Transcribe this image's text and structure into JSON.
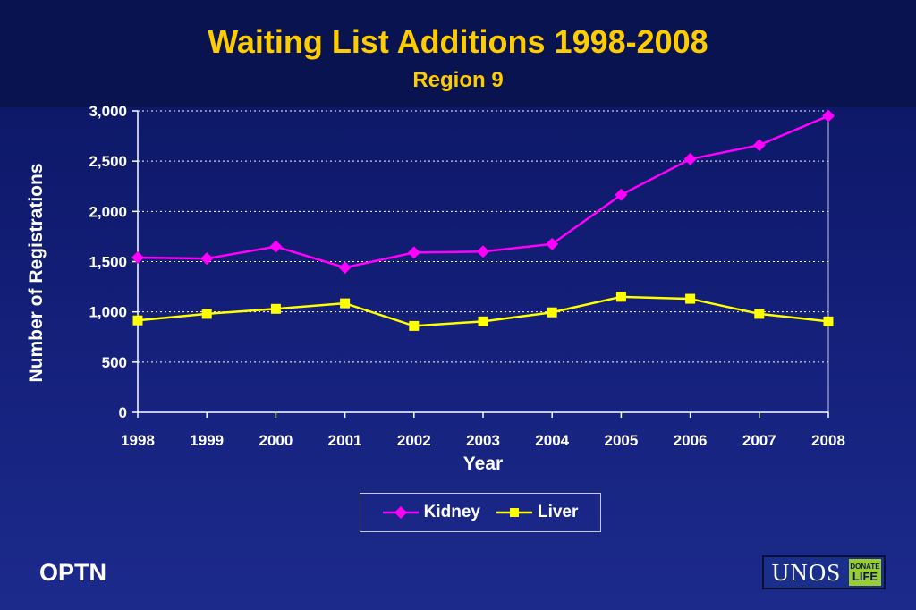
{
  "title": "Waiting List Additions 1998-2008",
  "subtitle": "Region 9",
  "footer": {
    "org": "OPTN",
    "logo_text": "UNOS",
    "logo_badge_line1": "DONATE",
    "logo_badge_line2": "LIFE"
  },
  "chart_data": {
    "type": "line",
    "title": "Waiting List Additions 1998-2008",
    "subtitle": "Region 9",
    "xlabel": "Year",
    "ylabel": "Number of Registrations",
    "categories": [
      "1998",
      "1999",
      "2000",
      "2001",
      "2002",
      "2003",
      "2004",
      "2005",
      "2006",
      "2007",
      "2008"
    ],
    "ylim": [
      0,
      3000
    ],
    "yticks": [
      0,
      500,
      1000,
      1500,
      2000,
      2500,
      3000
    ],
    "ytick_labels": [
      "0",
      "500",
      "1,000",
      "1,500",
      "2,000",
      "2,500",
      "3,000"
    ],
    "grid": true,
    "legend_position": "bottom",
    "series": [
      {
        "name": "Kidney",
        "color": "#ff00ff",
        "marker": "diamond",
        "values": [
          1540,
          1530,
          1650,
          1440,
          1590,
          1600,
          1675,
          2165,
          2520,
          2660,
          2950
        ]
      },
      {
        "name": "Liver",
        "color": "#ffff00",
        "marker": "square",
        "values": [
          915,
          980,
          1030,
          1085,
          860,
          905,
          995,
          1150,
          1130,
          980,
          905
        ]
      }
    ]
  }
}
